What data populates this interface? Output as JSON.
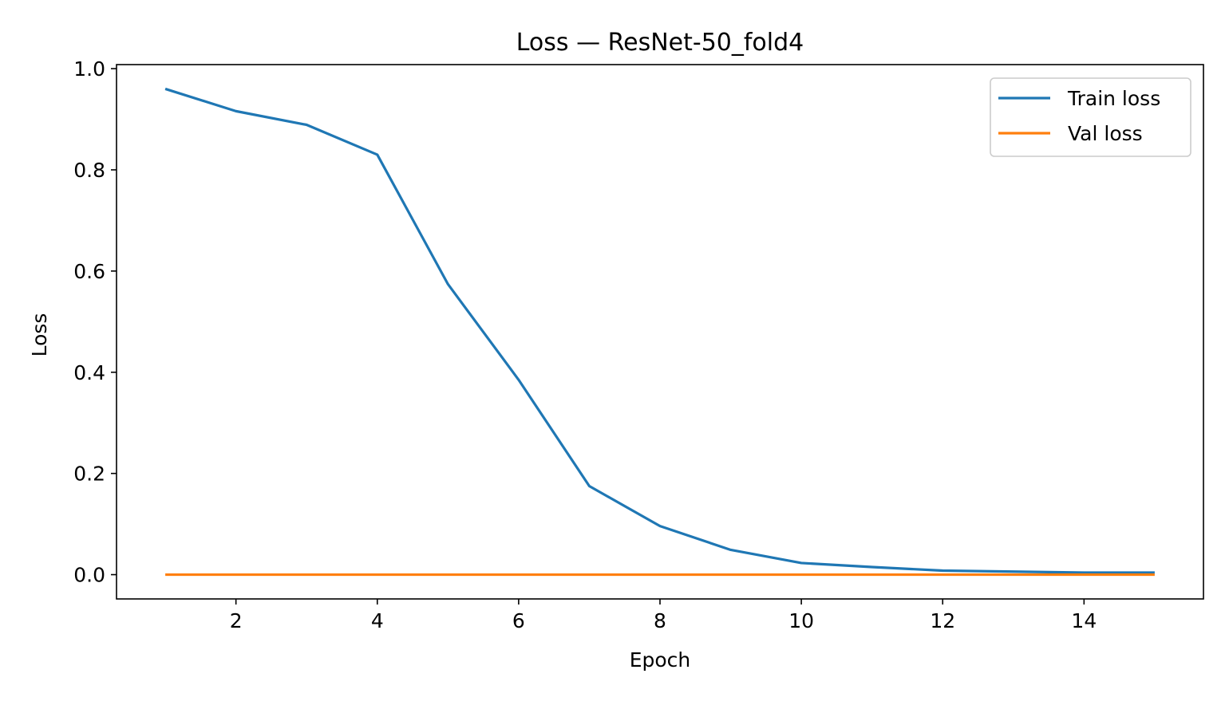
{
  "chart_data": {
    "type": "line",
    "title": "Loss — ResNet-50_fold4",
    "xlabel": "Epoch",
    "ylabel": "Loss",
    "x": [
      1,
      2,
      3,
      4,
      5,
      6,
      7,
      8,
      9,
      10,
      11,
      12,
      13,
      14,
      15
    ],
    "series": [
      {
        "name": "Train loss",
        "color": "#1f77b4",
        "values": [
          0.96,
          0.916,
          0.889,
          0.83,
          0.574,
          0.385,
          0.175,
          0.096,
          0.049,
          0.023,
          0.015,
          0.008,
          0.006,
          0.004,
          0.004
        ]
      },
      {
        "name": "Val loss",
        "color": "#ff7f0e",
        "values": [
          0.0,
          0.0,
          0.0,
          0.0,
          0.0,
          0.0,
          0.0,
          0.0,
          0.0,
          0.0,
          0.0,
          0.0,
          0.0,
          0.0,
          0.0
        ]
      }
    ],
    "xlim": [
      0.31,
      15.69
    ],
    "ylim": [
      -0.048,
      1.008
    ],
    "xticks": [
      "2",
      "4",
      "6",
      "8",
      "10",
      "12",
      "14"
    ],
    "yticks": [
      "0.0",
      "0.2",
      "0.4",
      "0.6",
      "0.8",
      "1.0"
    ],
    "grid": false,
    "legend": "top-right"
  }
}
